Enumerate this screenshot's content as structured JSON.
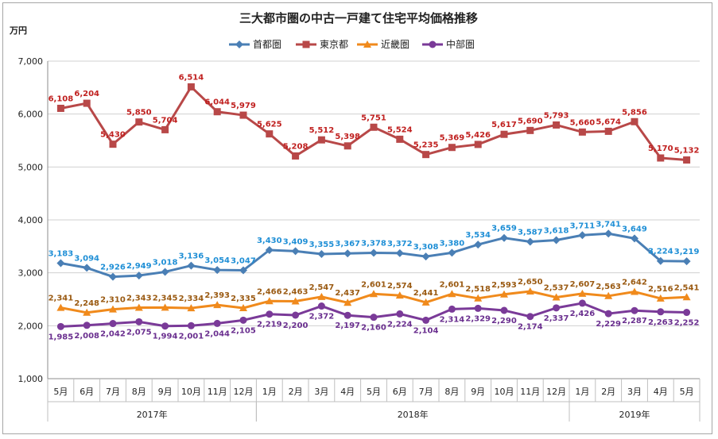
{
  "chart_data": {
    "type": "line",
    "title": "三大都市圏の中古一戸建て住宅平均価格推移",
    "unit_label": "万円",
    "ylim": [
      1000,
      7000
    ],
    "yticks": [
      "1,000",
      "2,000",
      "3,000",
      "4,000",
      "5,000",
      "6,000",
      "7,000"
    ],
    "ytick_values": [
      1000,
      2000,
      3000,
      4000,
      5000,
      6000,
      7000
    ],
    "categories": [
      "5月",
      "6月",
      "7月",
      "8月",
      "9月",
      "10月",
      "11月",
      "12月",
      "1月",
      "2月",
      "3月",
      "4月",
      "5月",
      "6月",
      "7月",
      "8月",
      "9月",
      "10月",
      "11月",
      "12月",
      "1月",
      "2月",
      "3月",
      "4月",
      "5月"
    ],
    "year_groups": [
      {
        "label": "2017年",
        "start": 0,
        "end": 7
      },
      {
        "label": "2018年",
        "start": 8,
        "end": 19
      },
      {
        "label": "2019年",
        "start": 20,
        "end": 24
      }
    ],
    "series": [
      {
        "name": "首都圏",
        "color": "#4a7fb5",
        "label_color": "#1f8fd6",
        "marker": "diamond",
        "label_pos": "above",
        "values": [
          3183,
          3094,
          2926,
          2949,
          3018,
          3136,
          3054,
          3047,
          3430,
          3409,
          3355,
          3367,
          3378,
          3372,
          3308,
          3380,
          3534,
          3659,
          3587,
          3618,
          3711,
          3741,
          3649,
          3224,
          3219
        ],
        "labels": [
          "3,183",
          "3,094",
          "2,926",
          "2,949",
          "3,018",
          "3,136",
          "3,054",
          "3,047",
          "3,430",
          "3,409",
          "3,355",
          "3,367",
          "3,378",
          "3,372",
          "3,308",
          "3,380",
          "3,534",
          "3,659",
          "3,587",
          "3,618",
          "3,711",
          "3,741",
          "3,649",
          "3,224",
          "3,219"
        ]
      },
      {
        "name": "東京都",
        "color": "#b84848",
        "label_color": "#c0201f",
        "marker": "square",
        "label_pos": "above",
        "values": [
          6108,
          6204,
          5430,
          5850,
          5704,
          6514,
          6044,
          5979,
          5625,
          5208,
          5512,
          5398,
          5751,
          5524,
          5235,
          5369,
          5426,
          5617,
          5690,
          5793,
          5660,
          5674,
          5856,
          5170,
          5132
        ],
        "labels": [
          "6,108",
          "6,204",
          "5,430",
          "5,850",
          "5,704",
          "6,514",
          "6,044",
          "5,979",
          "5,625",
          "5,208",
          "5,512",
          "5,398",
          "5,751",
          "5,524",
          "5,235",
          "5,369",
          "5,426",
          "5,617",
          "5,690",
          "5,793",
          "5,660",
          "5,674",
          "5,856",
          "5,170",
          "5,132"
        ]
      },
      {
        "name": "近畿圏",
        "color": "#f08a1c",
        "label_color": "#9a5a12",
        "marker": "triangle",
        "label_pos": "above",
        "values": [
          2341,
          2248,
          2310,
          2343,
          2345,
          2334,
          2393,
          2335,
          2466,
          2463,
          2547,
          2437,
          2601,
          2574,
          2441,
          2601,
          2518,
          2593,
          2650,
          2537,
          2607,
          2563,
          2642,
          2516,
          2541
        ],
        "labels": [
          "2,341",
          "2,248",
          "2,310",
          "2,343",
          "2,345",
          "2,334",
          "2,393",
          "2,335",
          "2,466",
          "2,463",
          "2,547",
          "2,437",
          "2,601",
          "2,574",
          "2,441",
          "2,601",
          "2,518",
          "2,593",
          "2,650",
          "2,537",
          "2,607",
          "2,563",
          "2,642",
          "2,516",
          "2,541"
        ]
      },
      {
        "name": "中部圏",
        "color": "#7a3a98",
        "label_color": "#6a2f8f",
        "marker": "circle",
        "label_pos": "below",
        "values": [
          1985,
          2008,
          2042,
          2075,
          1994,
          2001,
          2044,
          2105,
          2219,
          2200,
          2372,
          2197,
          2160,
          2224,
          2104,
          2314,
          2329,
          2290,
          2174,
          2337,
          2426,
          2229,
          2287,
          2263,
          2252
        ],
        "labels": [
          "1,985",
          "2,008",
          "2,042",
          "2,075",
          "1,994",
          "2,001",
          "2,044",
          "2,105",
          "2,219",
          "2,200",
          "2,372",
          "2,197",
          "2,160",
          "2,224",
          "2,104",
          "2,314",
          "2,329",
          "2,290",
          "2,174",
          "2,337",
          "2,426",
          "2,229",
          "2,287",
          "2,263",
          "2,252"
        ]
      }
    ],
    "legend_position": "top-center",
    "grid": "horizontal"
  }
}
